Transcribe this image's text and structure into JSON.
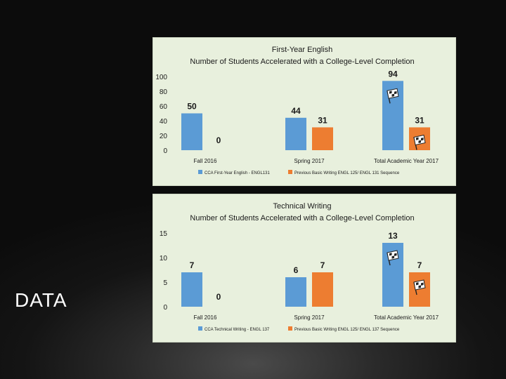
{
  "slide": {
    "title": "DATA"
  },
  "chart_data": [
    {
      "type": "bar",
      "title": "First-Year English",
      "subtitle": "Number of Students Accelerated with a College-Level Completion",
      "categories": [
        "Fall 2016",
        "Spring 2017",
        "Total Academic Year 2017"
      ],
      "series": [
        {
          "name": "CCA First-Year English - ENGL131",
          "values": [
            50,
            44,
            94
          ],
          "color": "#5b9bd5"
        },
        {
          "name": "Previous Basic Writing ENGL 125/ ENGL 131 Sequence",
          "values": [
            0,
            31,
            31
          ],
          "color": "#ed7d31"
        }
      ],
      "yticks": [
        "0",
        "20",
        "40",
        "60",
        "80",
        "100"
      ],
      "ylim": [
        0,
        100
      ],
      "flag_icons": [
        "checkered-flag-icon",
        "checkered-flag-icon"
      ],
      "grid": false,
      "legend": "bottom"
    },
    {
      "type": "bar",
      "title": "Technical Writing",
      "subtitle": "Number of Students Accelerated with a College-Level Completion",
      "categories": [
        "Fall 2016",
        "Spring 2017",
        "Total Academic Year 2017"
      ],
      "series": [
        {
          "name": "CCA Technical Writing - ENGL 137",
          "values": [
            7,
            6,
            13
          ],
          "color": "#5b9bd5"
        },
        {
          "name": "Previous Basic Writing ENGL 125/ ENGL 137 Sequence",
          "values": [
            0,
            7,
            7
          ],
          "color": "#ed7d31"
        }
      ],
      "yticks": [
        "0",
        "5",
        "10",
        "15"
      ],
      "ylim": [
        0,
        15
      ],
      "flag_icons": [
        "checkered-flag-icon",
        "checkered-flag-icon"
      ],
      "grid": false,
      "legend": "bottom"
    }
  ]
}
